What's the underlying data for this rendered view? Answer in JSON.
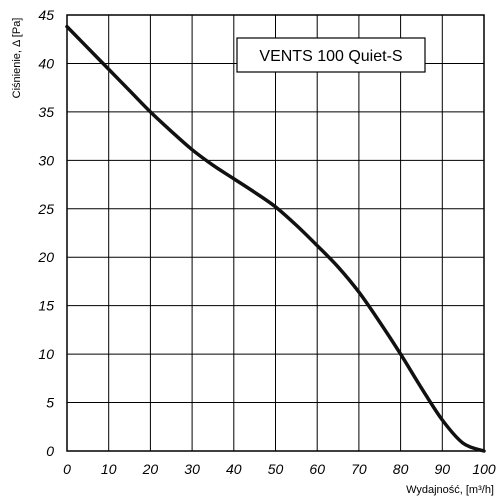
{
  "chart_data": {
    "type": "line",
    "title": "",
    "annotation": "VENTS 100 Quiet-S",
    "xlabel": "Wydajność, [m³/h]",
    "ylabel": "Ciśnienie, Δ [Pa]",
    "xlim": [
      0,
      100
    ],
    "ylim": [
      0,
      45
    ],
    "xticks": [
      "0",
      "10",
      "20",
      "30",
      "40",
      "50",
      "60",
      "70",
      "80",
      "90",
      "100"
    ],
    "yticks": [
      "0",
      "5",
      "10",
      "15",
      "20",
      "25",
      "30",
      "35",
      "40",
      "45"
    ],
    "grid": true,
    "series": [
      {
        "name": "",
        "color": "#111111",
        "x": [
          0,
          5,
          10,
          15,
          20,
          25,
          30,
          35,
          40,
          45,
          50,
          55,
          60,
          65,
          70,
          75,
          80,
          85,
          90,
          95,
          100
        ],
        "y": [
          43.8,
          41.6,
          39.4,
          37.2,
          35.0,
          33.0,
          31.1,
          29.5,
          28.1,
          26.7,
          25.2,
          23.3,
          21.2,
          19.0,
          16.4,
          13.3,
          10.0,
          6.5,
          3.2,
          0.8,
          0
        ]
      }
    ]
  }
}
